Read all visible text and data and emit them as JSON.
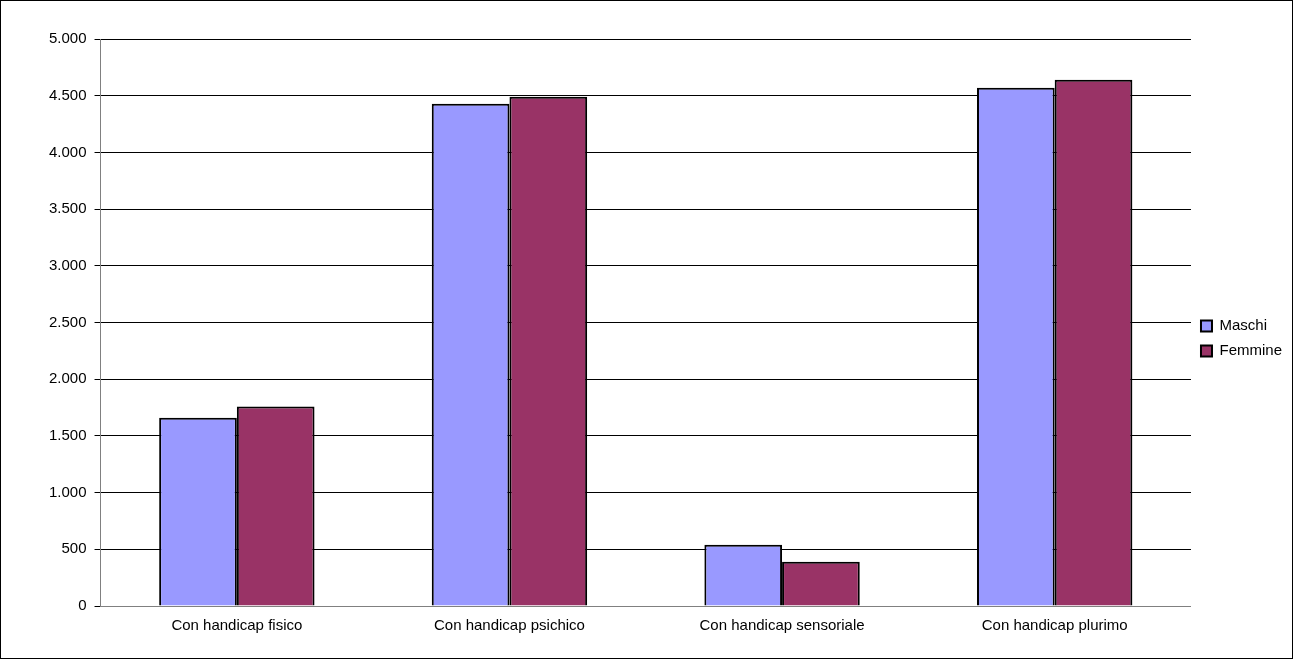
{
  "chart_data": {
    "type": "bar",
    "categories": [
      "Con handicap fisico",
      "Con handicap psichico",
      "Con handicap sensoriale",
      "Con handicap plurimo"
    ],
    "series": [
      {
        "name": "Maschi",
        "color": "#9999ff",
        "values": [
          1660,
          4430,
          540,
          4570
        ]
      },
      {
        "name": "Femmine",
        "color": "#993366",
        "values": [
          1760,
          4490,
          390,
          4640
        ]
      }
    ],
    "ylim": [
      0,
      5000
    ],
    "yticks": [
      {
        "value": 0,
        "label": "0"
      },
      {
        "value": 500,
        "label": "500"
      },
      {
        "value": 1000,
        "label": "1.000"
      },
      {
        "value": 1500,
        "label": "1.500"
      },
      {
        "value": 2000,
        "label": "2.000"
      },
      {
        "value": 2500,
        "label": "2.500"
      },
      {
        "value": 3000,
        "label": "3.000"
      },
      {
        "value": 3500,
        "label": "3.500"
      },
      {
        "value": 4000,
        "label": "4.000"
      },
      {
        "value": 4500,
        "label": "4.500"
      },
      {
        "value": 5000,
        "label": "5.000"
      }
    ],
    "grid": "y",
    "legend": "right"
  }
}
